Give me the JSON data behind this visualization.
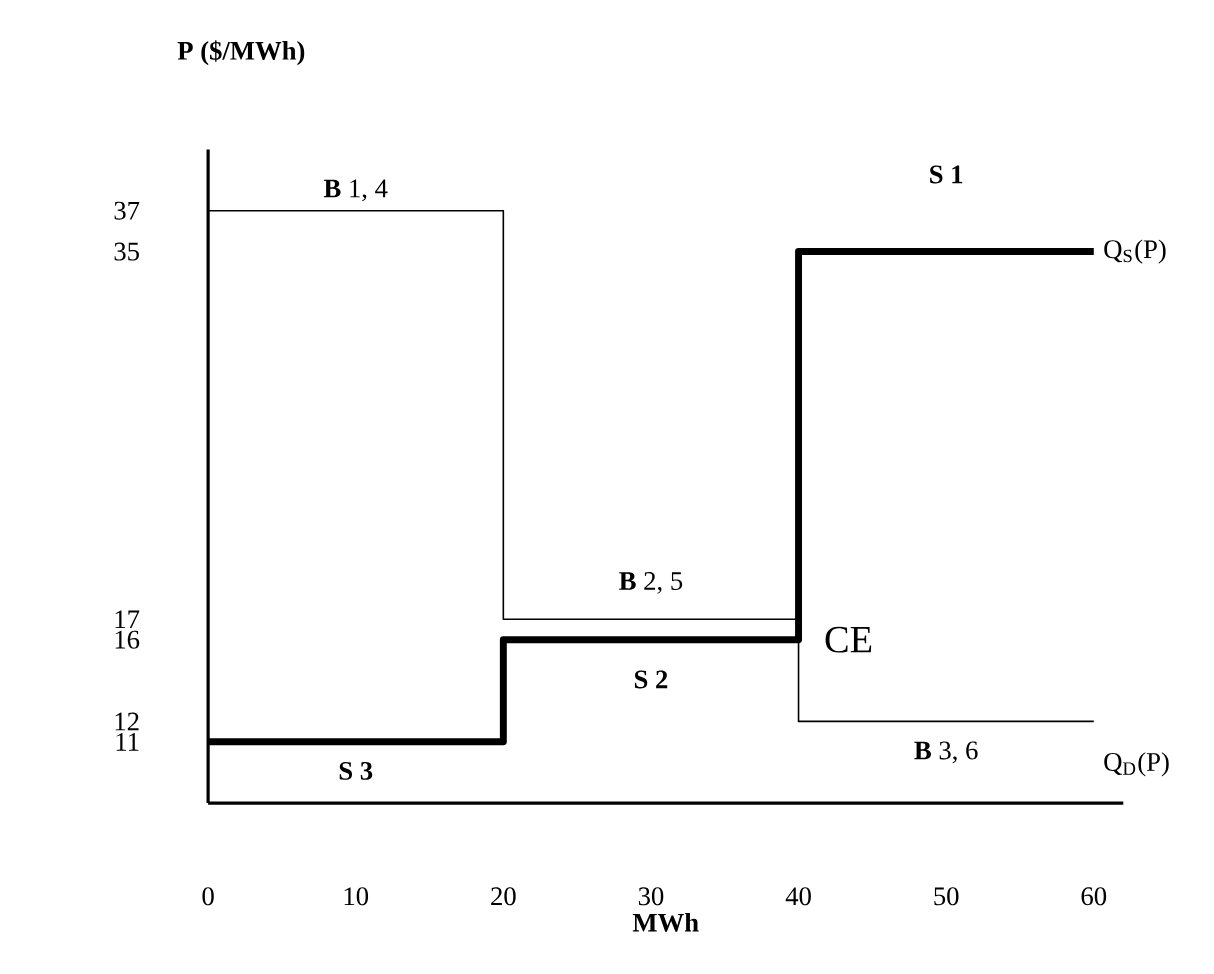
{
  "chart_data": {
    "type": "step",
    "xlabel": "MWh",
    "ylabel": "P ($/MWh)",
    "xlim": [
      0,
      62
    ],
    "ylim": [
      8,
      40
    ],
    "xticks": [
      0,
      10,
      20,
      30,
      40,
      50,
      60
    ],
    "yticks": [
      11,
      12,
      16,
      17,
      35,
      37
    ],
    "series": [
      {
        "name": "Q$_{S}$(P)",
        "color": "#000000",
        "x": [
          0,
          20,
          40,
          60
        ],
        "values": [
          11,
          16,
          35,
          35
        ]
      },
      {
        "name": "Q$_{D}$(P)",
        "color": "#000000",
        "x": [
          0,
          20,
          40,
          60
        ],
        "values": [
          37,
          17,
          12,
          12
        ]
      }
    ],
    "annotations": [
      {
        "text": "**B** 1, 4",
        "x": 10,
        "y": 37
      },
      {
        "text": "**S 1**",
        "x": 50,
        "y": 35
      },
      {
        "text": "**B** 2, 5",
        "x": 30,
        "y": 17
      },
      {
        "text": "CE",
        "x": 40,
        "y": 16
      },
      {
        "text": "**S 2**",
        "x": 30,
        "y": 16
      },
      {
        "text": "**B** 3, 6",
        "x": 50,
        "y": 12
      },
      {
        "text": "**S 3**",
        "x": 10,
        "y": 11
      }
    ],
    "grid": false,
    "legend": false,
    "marker": "none",
    "line_style": "solid"
  }
}
